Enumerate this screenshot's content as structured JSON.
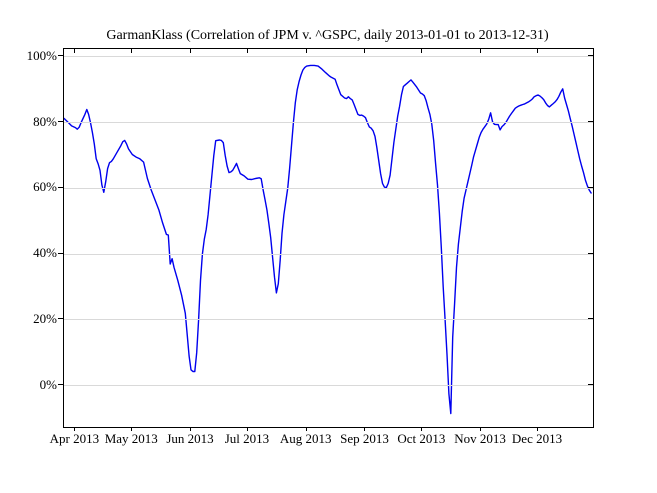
{
  "figure": {
    "title": "GarmanKlass (Correlation of JPM v. ^GSPC, daily 2013-01-01 to 2013-12-31)",
    "background_color": "#ffffff",
    "axis_color": "#000000",
    "grid_color": "#d9d9d9"
  },
  "chart_data": {
    "type": "line",
    "title": "GarmanKlass (Correlation of JPM v. ^GSPC, daily 2013-01-01 to 2013-12-31)",
    "xlabel": "",
    "ylabel": "",
    "grid": "horizontal-only",
    "legend": "none",
    "x_axis": {
      "range_dates": [
        "2013-03-26",
        "2013-12-30"
      ],
      "tick_dates": [
        "2013-04-01",
        "2013-05-01",
        "2013-06-01",
        "2013-07-01",
        "2013-08-01",
        "2013-09-01",
        "2013-10-01",
        "2013-11-01",
        "2013-12-01"
      ],
      "tick_labels": [
        "Apr 2013",
        "May 2013",
        "Jun 2013",
        "Jul 2013",
        "Aug 2013",
        "Sep 2013",
        "Oct 2013",
        "Nov 2013",
        "Dec 2013"
      ]
    },
    "y_axis": {
      "unit": "%",
      "range": [
        -12.6,
        102.4
      ],
      "tick_values": [
        100,
        80,
        60,
        40,
        20,
        0
      ],
      "tick_labels": [
        "100%",
        "80%",
        "60%",
        "40%",
        "20%",
        "0%"
      ]
    },
    "series": [
      {
        "name": "GarmanKlass rolling correlation JPM vs ^GSPC",
        "color": "#0000ee",
        "line_width": 1.4,
        "points": [
          [
            "03-26",
            81.3
          ],
          [
            "03-28",
            80.2
          ],
          [
            "03-30",
            79.0
          ],
          [
            "04-01",
            78.5
          ],
          [
            "04-02",
            78.0
          ],
          [
            "04-03",
            78.6
          ],
          [
            "04-04",
            80.0
          ],
          [
            "04-06",
            82.5
          ],
          [
            "04-07",
            84.0
          ],
          [
            "04-08",
            82.5
          ],
          [
            "04-09",
            80.0
          ],
          [
            "04-10",
            77.0
          ],
          [
            "04-11",
            73.5
          ],
          [
            "04-12",
            69.0
          ],
          [
            "04-13",
            67.5
          ],
          [
            "04-14",
            65.5
          ],
          [
            "04-15",
            61.0
          ],
          [
            "04-16",
            58.8
          ],
          [
            "04-17",
            62.0
          ],
          [
            "04-18",
            66.0
          ],
          [
            "04-19",
            67.8
          ],
          [
            "04-20",
            68.2
          ],
          [
            "04-21",
            69.0
          ],
          [
            "04-23",
            71.0
          ],
          [
            "04-25",
            73.0
          ],
          [
            "04-26",
            74.2
          ],
          [
            "04-27",
            74.6
          ],
          [
            "04-28",
            73.5
          ],
          [
            "04-29",
            72.0
          ],
          [
            "05-01",
            70.3
          ],
          [
            "05-03",
            69.5
          ],
          [
            "05-05",
            69.0
          ],
          [
            "05-07",
            68.0
          ],
          [
            "05-09",
            63.0
          ],
          [
            "05-11",
            59.5
          ],
          [
            "05-13",
            56.5
          ],
          [
            "05-15",
            53.5
          ],
          [
            "05-17",
            49.5
          ],
          [
            "05-19",
            46.0
          ],
          [
            "05-20",
            45.8
          ],
          [
            "05-21",
            37.0
          ],
          [
            "05-22",
            38.6
          ],
          [
            "05-23",
            36.0
          ],
          [
            "05-25",
            32.0
          ],
          [
            "05-27",
            27.5
          ],
          [
            "05-29",
            22.0
          ],
          [
            "05-30",
            15.5
          ],
          [
            "05-31",
            9.0
          ],
          [
            "06-01",
            4.8
          ],
          [
            "06-02",
            4.3
          ],
          [
            "06-03",
            4.3
          ],
          [
            "06-04",
            10.0
          ],
          [
            "06-05",
            20.0
          ],
          [
            "06-06",
            32.0
          ],
          [
            "06-07",
            40.0
          ],
          [
            "06-08",
            44.5
          ],
          [
            "06-09",
            47.5
          ],
          [
            "06-10",
            52.0
          ],
          [
            "06-11",
            58.0
          ],
          [
            "06-12",
            64.0
          ],
          [
            "06-13",
            70.0
          ],
          [
            "06-14",
            74.5
          ],
          [
            "06-16",
            74.7
          ],
          [
            "06-17",
            74.6
          ],
          [
            "06-18",
            73.9
          ],
          [
            "06-19",
            70.0
          ],
          [
            "06-20",
            66.8
          ],
          [
            "06-21",
            64.8
          ],
          [
            "06-22",
            65.0
          ],
          [
            "06-23",
            65.5
          ],
          [
            "06-24",
            66.5
          ],
          [
            "06-25",
            67.6
          ],
          [
            "06-26",
            66.0
          ],
          [
            "06-27",
            64.5
          ],
          [
            "06-29",
            63.8
          ],
          [
            "07-01",
            62.8
          ],
          [
            "07-03",
            62.7
          ],
          [
            "07-05",
            63.0
          ],
          [
            "07-07",
            63.2
          ],
          [
            "07-08",
            62.9
          ],
          [
            "07-09",
            59.6
          ],
          [
            "07-10",
            56.6
          ],
          [
            "07-11",
            53.5
          ],
          [
            "07-12",
            49.4
          ],
          [
            "07-13",
            45.0
          ],
          [
            "07-14",
            39.0
          ],
          [
            "07-15",
            33.0
          ],
          [
            "07-16",
            28.2
          ],
          [
            "07-17",
            31.0
          ],
          [
            "07-18",
            38.2
          ],
          [
            "07-19",
            46.3
          ],
          [
            "07-20",
            52.0
          ],
          [
            "07-21",
            56.0
          ],
          [
            "07-22",
            60.0
          ],
          [
            "07-23",
            66.0
          ],
          [
            "07-24",
            73.0
          ],
          [
            "07-25",
            80.0
          ],
          [
            "07-26",
            86.0
          ],
          [
            "07-27",
            90.0
          ],
          [
            "07-28",
            92.5
          ],
          [
            "07-29",
            94.5
          ],
          [
            "07-30",
            96.0
          ],
          [
            "07-31",
            96.8
          ],
          [
            "08-01",
            97.2
          ],
          [
            "08-03",
            97.4
          ],
          [
            "08-05",
            97.4
          ],
          [
            "08-07",
            97.2
          ],
          [
            "08-09",
            96.3
          ],
          [
            "08-11",
            95.2
          ],
          [
            "08-13",
            94.2
          ],
          [
            "08-14",
            93.8
          ],
          [
            "08-16",
            93.2
          ],
          [
            "08-17",
            91.5
          ],
          [
            "08-19",
            88.5
          ],
          [
            "08-21",
            87.5
          ],
          [
            "08-22",
            87.3
          ],
          [
            "08-23",
            87.9
          ],
          [
            "08-24",
            87.3
          ],
          [
            "08-25",
            86.9
          ],
          [
            "08-26",
            85.5
          ],
          [
            "08-27",
            84.0
          ],
          [
            "08-28",
            82.5
          ],
          [
            "08-29",
            82.2
          ],
          [
            "08-30",
            82.3
          ],
          [
            "08-31",
            82.0
          ],
          [
            "09-01",
            81.5
          ],
          [
            "09-02",
            80.0
          ],
          [
            "09-03",
            78.7
          ],
          [
            "09-04",
            78.3
          ],
          [
            "09-05",
            77.5
          ],
          [
            "09-06",
            75.8
          ],
          [
            "09-07",
            72.5
          ],
          [
            "09-08",
            68.5
          ],
          [
            "09-09",
            64.5
          ],
          [
            "09-10",
            61.5
          ],
          [
            "09-11",
            60.4
          ],
          [
            "09-12",
            60.2
          ],
          [
            "09-13",
            61.5
          ],
          [
            "09-14",
            64.0
          ],
          [
            "09-15",
            69.0
          ],
          [
            "09-16",
            74.0
          ],
          [
            "09-17",
            78.0
          ],
          [
            "09-18",
            82.0
          ],
          [
            "09-19",
            85.0
          ],
          [
            "09-20",
            88.5
          ],
          [
            "09-21",
            91.0
          ],
          [
            "09-22",
            91.5
          ],
          [
            "09-23",
            92.0
          ],
          [
            "09-24",
            92.5
          ],
          [
            "09-25",
            93.0
          ],
          [
            "09-26",
            92.3
          ],
          [
            "09-28",
            90.8
          ],
          [
            "09-30",
            89.0
          ],
          [
            "10-01",
            88.7
          ],
          [
            "10-02",
            88.2
          ],
          [
            "10-03",
            86.7
          ],
          [
            "10-04",
            84.5
          ],
          [
            "10-05",
            82.5
          ],
          [
            "10-06",
            79.5
          ],
          [
            "10-07",
            74.5
          ],
          [
            "10-08",
            67.5
          ],
          [
            "10-09",
            61.0
          ],
          [
            "10-10",
            52.5
          ],
          [
            "10-11",
            42.0
          ],
          [
            "10-12",
            30.0
          ],
          [
            "10-13",
            20.0
          ],
          [
            "10-14",
            9.5
          ],
          [
            "10-15",
            -2.5
          ],
          [
            "10-16",
            -8.5
          ],
          [
            "10-17",
            14.7
          ],
          [
            "10-18",
            25.0
          ],
          [
            "10-19",
            36.0
          ],
          [
            "10-20",
            43.0
          ],
          [
            "10-21",
            48.0
          ],
          [
            "10-22",
            53.0
          ],
          [
            "10-23",
            57.0
          ],
          [
            "10-24",
            59.5
          ],
          [
            "10-25",
            62.0
          ],
          [
            "10-26",
            64.5
          ],
          [
            "10-27",
            67.0
          ],
          [
            "10-28",
            69.5
          ],
          [
            "10-29",
            71.5
          ],
          [
            "10-30",
            73.5
          ],
          [
            "10-31",
            75.5
          ],
          [
            "11-01",
            77.0
          ],
          [
            "11-02",
            78.0
          ],
          [
            "11-03",
            78.8
          ],
          [
            "11-04",
            79.6
          ],
          [
            "11-05",
            81.0
          ],
          [
            "11-06",
            83.0
          ],
          [
            "11-07",
            80.3
          ],
          [
            "11-08",
            79.5
          ],
          [
            "11-09",
            79.4
          ],
          [
            "11-10",
            79.4
          ],
          [
            "11-11",
            77.8
          ],
          [
            "11-12",
            78.8
          ],
          [
            "11-13",
            79.3
          ],
          [
            "11-14",
            80.0
          ],
          [
            "11-15",
            81.0
          ],
          [
            "11-16",
            82.0
          ],
          [
            "11-17",
            82.8
          ],
          [
            "11-18",
            83.6
          ],
          [
            "11-19",
            84.4
          ],
          [
            "11-20",
            84.8
          ],
          [
            "11-21",
            85.1
          ],
          [
            "11-22",
            85.3
          ],
          [
            "11-23",
            85.5
          ],
          [
            "11-24",
            85.7
          ],
          [
            "11-25",
            86.0
          ],
          [
            "11-26",
            86.3
          ],
          [
            "11-27",
            86.7
          ],
          [
            "11-28",
            87.2
          ],
          [
            "11-29",
            87.9
          ],
          [
            "11-30",
            88.2
          ],
          [
            "12-01",
            88.4
          ],
          [
            "12-02",
            88.1
          ],
          [
            "12-03",
            87.6
          ],
          [
            "12-04",
            87.0
          ],
          [
            "12-05",
            86.0
          ],
          [
            "12-06",
            85.2
          ],
          [
            "12-07",
            84.8
          ],
          [
            "12-08",
            85.3
          ],
          [
            "12-09",
            85.8
          ],
          [
            "12-10",
            86.3
          ],
          [
            "12-11",
            87.0
          ],
          [
            "12-12",
            88.0
          ],
          [
            "12-13",
            89.3
          ],
          [
            "12-14",
            90.3
          ],
          [
            "12-15",
            87.5
          ],
          [
            "12-16",
            85.5
          ],
          [
            "12-17",
            83.5
          ],
          [
            "12-18",
            81.3
          ],
          [
            "12-19",
            79.0
          ],
          [
            "12-20",
            76.5
          ],
          [
            "12-21",
            74.0
          ],
          [
            "12-22",
            71.5
          ],
          [
            "12-23",
            69.0
          ],
          [
            "12-24",
            66.8
          ],
          [
            "12-25",
            64.8
          ],
          [
            "12-26",
            62.5
          ],
          [
            "12-27",
            60.8
          ],
          [
            "12-28",
            59.5
          ],
          [
            "12-29",
            58.6
          ]
        ]
      }
    ]
  }
}
